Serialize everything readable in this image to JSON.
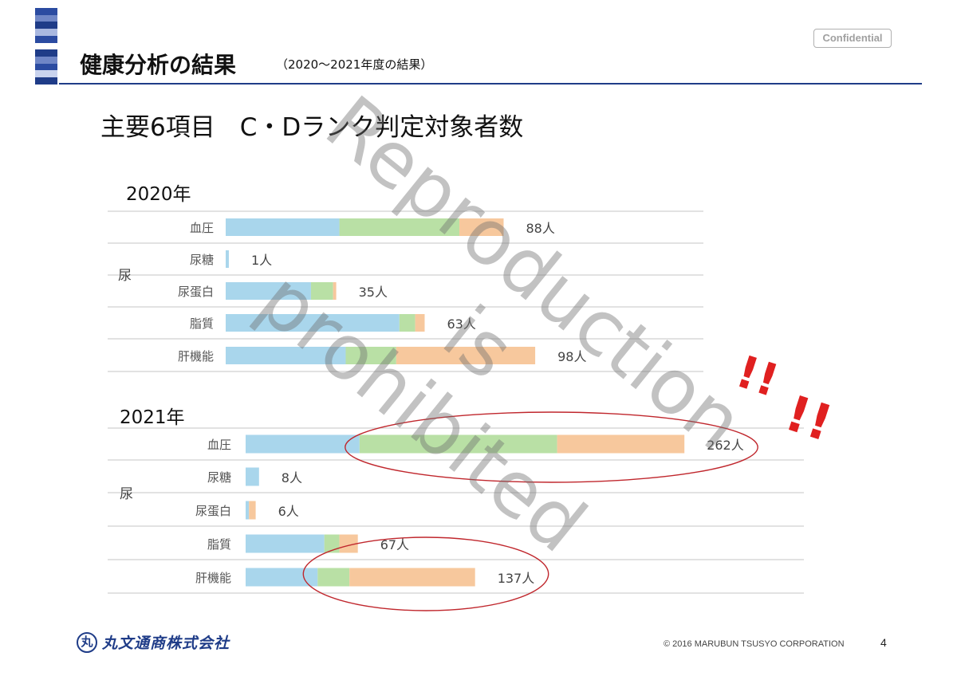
{
  "header": {
    "title": "健康分析の結果",
    "subtitle": "（2020～2021年度の結果）",
    "badge": "Confidential",
    "stripe_colors": [
      "#2b4ba1",
      "#6f86c6",
      "#1f3c88",
      "#a9b8e0",
      "#2b4ba1",
      "#ffffff",
      "#1f3c88",
      "#6f86c6",
      "#2b4ba1",
      "#c9d3ee",
      "#1f3c88"
    ]
  },
  "heading": "主要6項目　C・Dランク判定対象者数",
  "colors": {
    "segment_1": "#a9d6ec",
    "segment_2": "#b9e0a5",
    "segment_3": "#f7c89d",
    "highlight": "#c0272d",
    "rule": "#d9d9d9"
  },
  "chart_data": [
    {
      "type": "bar",
      "orientation": "horizontal",
      "stacked": true,
      "title": "2020年",
      "group_label": "尿",
      "categories": [
        "血圧",
        "尿糖",
        "尿蛋白",
        "脂質",
        "肝機能"
      ],
      "series": [
        {
          "values": [
            36,
            1,
            27,
            55,
            38
          ]
        },
        {
          "values": [
            38,
            0,
            7,
            5,
            16
          ]
        },
        {
          "values": [
            14,
            0,
            1,
            3,
            44
          ]
        }
      ],
      "totals": [
        88,
        1,
        35,
        63,
        98
      ],
      "value_labels": [
        "88人",
        "1人",
        "35人",
        "63人",
        "98人"
      ]
    },
    {
      "type": "bar",
      "orientation": "horizontal",
      "stacked": true,
      "title": "2021年",
      "group_label": "尿",
      "categories": [
        "血圧",
        "尿糖",
        "尿蛋白",
        "脂質",
        "肝機能"
      ],
      "series": [
        {
          "values": [
            68,
            8,
            2,
            47,
            43
          ]
        },
        {
          "values": [
            118,
            0,
            0,
            9,
            19
          ]
        },
        {
          "values": [
            76,
            0,
            4,
            11,
            75
          ]
        }
      ],
      "totals": [
        262,
        8,
        6,
        67,
        137
      ],
      "value_labels": [
        "262人",
        "8人",
        "6人",
        "67人",
        "137人"
      ],
      "highlighted": [
        "血圧",
        "肝機能"
      ]
    }
  ],
  "watermark": {
    "line1": "Reproduction",
    "line2": "is",
    "line3": "prohibited"
  },
  "exclamation": "!!",
  "footer": {
    "logo_mark": "丸",
    "company": "丸文通商株式会社",
    "copyright": "© 2016 MARUBUN TSUSYO CORPORATION",
    "page": "4"
  }
}
